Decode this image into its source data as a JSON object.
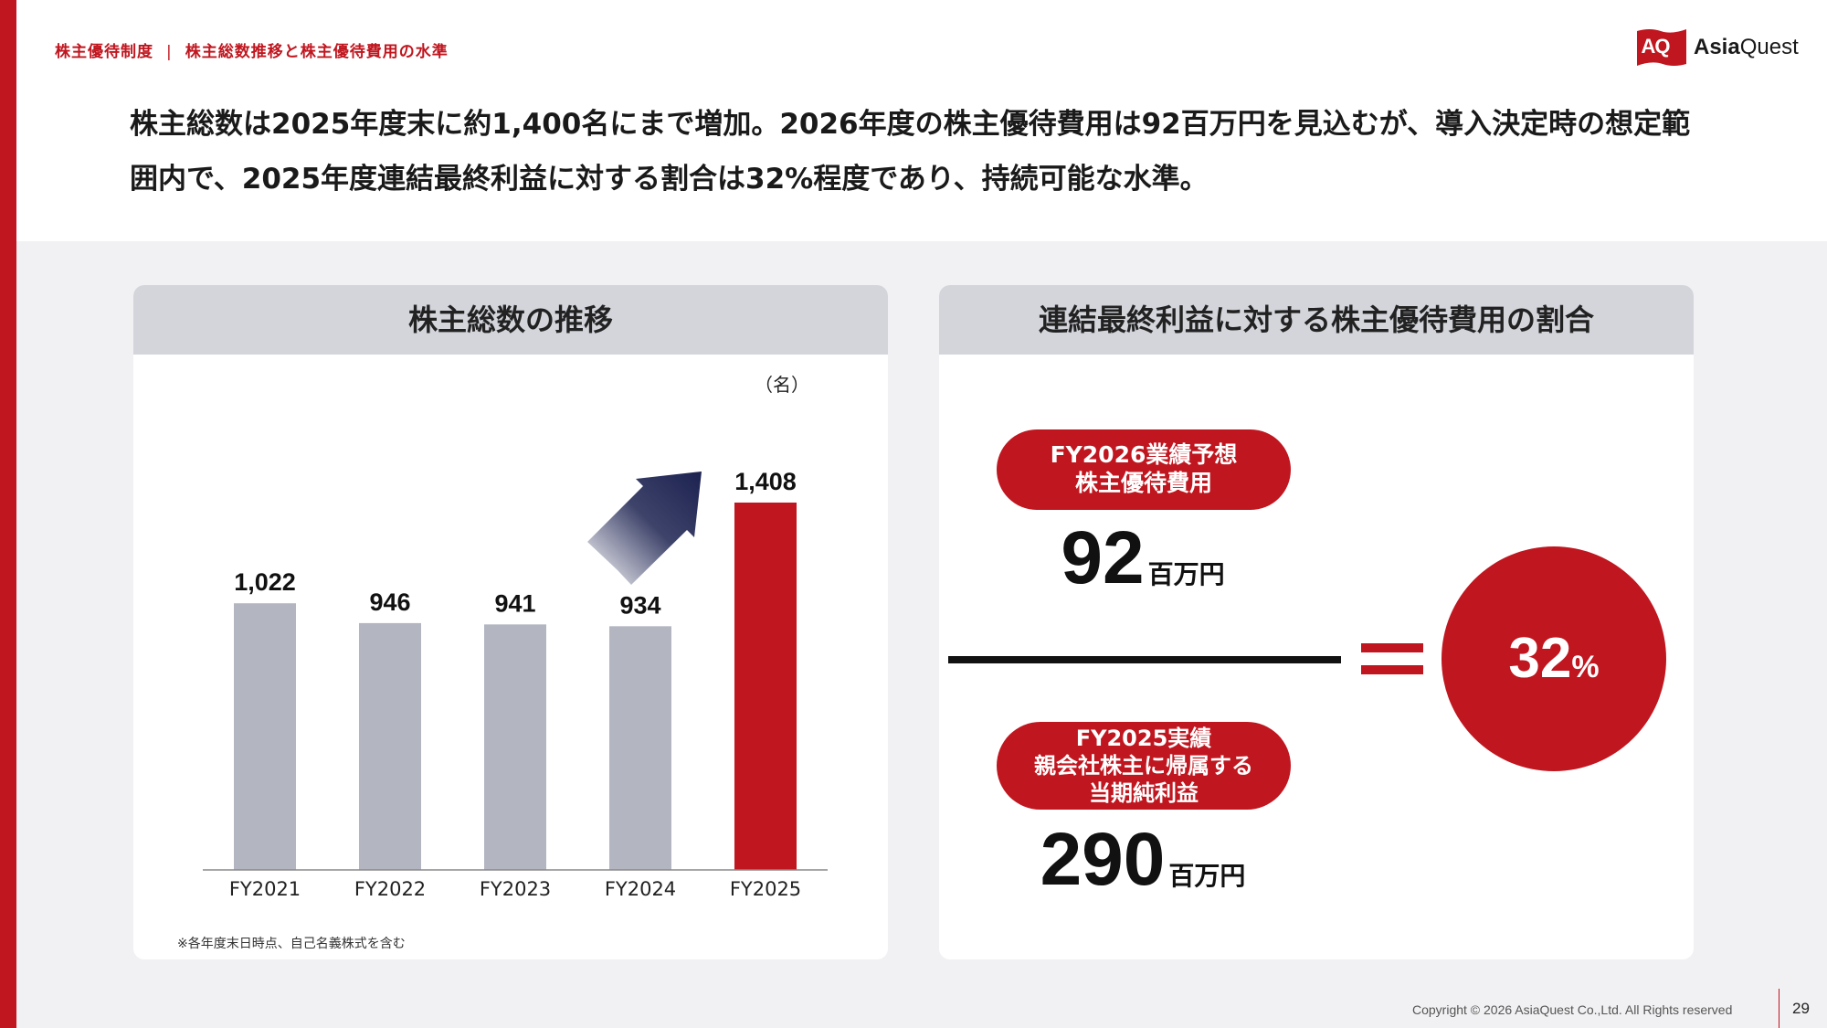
{
  "breadcrumb": {
    "section": "株主優待制度",
    "separator": "|",
    "page": "株主総数推移と株主優待費用の水準"
  },
  "logo": {
    "mark": "AQ",
    "name_bold": "Asia",
    "name_regular": "Quest",
    "color": "#c0161f"
  },
  "headline": "株主総数は2025年度末に約1,400名にまで増加。2026年度の株主優待費用は92百万円を見込むが、導入決定時の想定範囲内で、2025年度連結最終利益に対する割合は32%程度であり、持続可能な水準。",
  "left_panel": {
    "title": "株主総数の推移",
    "footnote": "※各年度末日時点、自己名義株式を含む"
  },
  "chart_data": {
    "type": "bar",
    "title": "株主総数の推移",
    "unit_label": "（名）",
    "categories": [
      "FY2021",
      "FY2022",
      "FY2023",
      "FY2024",
      "FY2025"
    ],
    "values": [
      1022,
      946,
      941,
      934,
      1408
    ],
    "value_labels": [
      "1,022",
      "946",
      "941",
      "934",
      "1,408"
    ],
    "colors": [
      "#b3b6c1",
      "#b3b6c1",
      "#b3b6c1",
      "#b3b6c1",
      "#c0161f"
    ],
    "ylim": [
      0,
      1408
    ],
    "grid": false,
    "legend": "none",
    "annotation": "trend-up-arrow"
  },
  "right_panel": {
    "title": "連結最終利益に対する株主優待費用の割合",
    "numerator": {
      "label_lines": [
        "FY2026業績予想",
        "株主優待費用"
      ],
      "value": "92",
      "unit": "百万円"
    },
    "denominator": {
      "label_lines": [
        "FY2025実績",
        "親会社株主に帰属する",
        "当期純利益"
      ],
      "value": "290",
      "unit": "百万円"
    },
    "equals_sign": "=",
    "result": {
      "value": "32",
      "unit": "%"
    }
  },
  "footer": {
    "copyright": "Copyright © 2026 AsiaQuest Co.,Ltd. All Rights reserved",
    "page_number": "29"
  },
  "colors": {
    "accent": "#c0161f",
    "bar_gray": "#b3b6c1",
    "arrow_navy": "#1c2250"
  }
}
